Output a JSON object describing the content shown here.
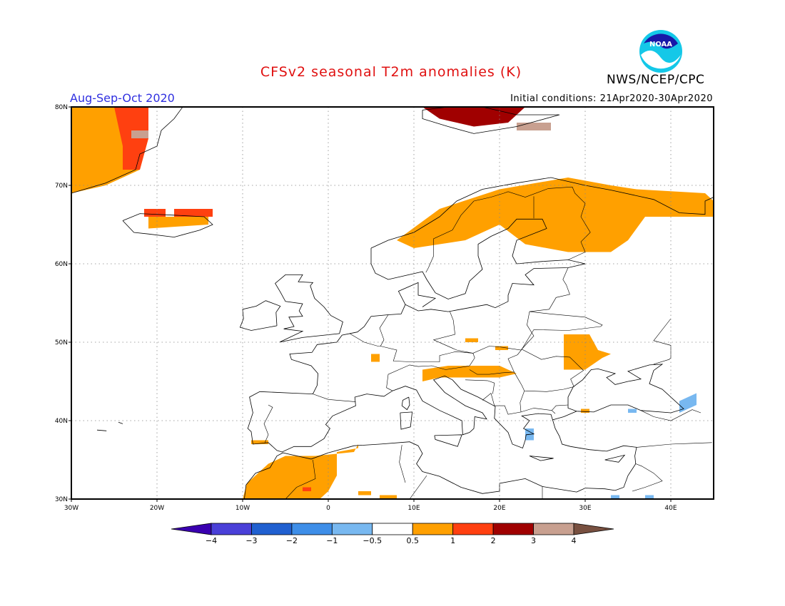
{
  "title": "CFSv2 seasonal T2m anomalies (K)",
  "agency": "NWS/NCEP/CPC",
  "logo_text": "NOAA",
  "period": "Aug-Sep-Oct 2020",
  "initial_conditions": "Initial conditions: 21Apr2020-30Apr2020",
  "map": {
    "lon_range": [
      -30,
      45
    ],
    "lat_range": [
      30,
      80
    ],
    "lon_ticks": [
      {
        "value": -30,
        "label": "30W"
      },
      {
        "value": -20,
        "label": "20W"
      },
      {
        "value": -10,
        "label": "10W"
      },
      {
        "value": 0,
        "label": "0"
      },
      {
        "value": 10,
        "label": "10E"
      },
      {
        "value": 20,
        "label": "20E"
      },
      {
        "value": 30,
        "label": "30E"
      },
      {
        "value": 40,
        "label": "40E"
      }
    ],
    "lat_ticks": [
      {
        "value": 80,
        "label": "80N"
      },
      {
        "value": 70,
        "label": "70N"
      },
      {
        "value": 60,
        "label": "60N"
      },
      {
        "value": 50,
        "label": "50N"
      },
      {
        "value": 40,
        "label": "40N"
      },
      {
        "value": 30,
        "label": "30N"
      }
    ]
  },
  "colorbar": {
    "colors": [
      "#3a00b0",
      "#4a40d8",
      "#2060d0",
      "#3e8ee8",
      "#78b8f0",
      "#ffffff",
      "#ffa000",
      "#ff4010",
      "#a00000",
      "#c8a090",
      "#785040"
    ],
    "labels": [
      "-4",
      "-3",
      "-2",
      "-1",
      "-0.5",
      "0.5",
      "1",
      "2",
      "3",
      "4"
    ]
  },
  "anomaly_regions": [
    {
      "category": "0.5-1",
      "color": "#ffa000",
      "polygons": [
        [
          [
            -30,
            80
          ],
          [
            -22,
            80
          ],
          [
            -21,
            76
          ],
          [
            -22,
            72
          ],
          [
            -26,
            70
          ],
          [
            -30,
            69
          ]
        ],
        [
          [
            -21,
            66
          ],
          [
            -14,
            66
          ],
          [
            -14,
            65
          ],
          [
            -21,
            64.5
          ]
        ],
        [
          [
            8,
            63
          ],
          [
            13,
            67
          ],
          [
            20,
            69.5
          ],
          [
            28,
            71
          ],
          [
            33,
            70
          ],
          [
            36,
            69.5
          ],
          [
            44,
            69
          ],
          [
            45,
            68
          ],
          [
            45,
            66
          ],
          [
            40,
            66
          ],
          [
            37,
            66
          ],
          [
            35,
            63
          ],
          [
            33,
            61.5
          ],
          [
            28,
            61.5
          ],
          [
            23,
            62.5
          ],
          [
            20,
            65
          ],
          [
            16,
            63
          ],
          [
            10,
            62
          ]
        ],
        [
          [
            16,
            50.5
          ],
          [
            17.5,
            50.5
          ],
          [
            17.5,
            50
          ],
          [
            16,
            50
          ]
        ],
        [
          [
            19.5,
            49.5
          ],
          [
            21,
            49.5
          ],
          [
            21,
            49
          ],
          [
            19.5,
            49
          ]
        ],
        [
          [
            11,
            46.5
          ],
          [
            14,
            47
          ],
          [
            20,
            47
          ],
          [
            22,
            46
          ],
          [
            20,
            45.5
          ],
          [
            16,
            45.5
          ],
          [
            13,
            45.5
          ],
          [
            11,
            45
          ]
        ],
        [
          [
            27.5,
            51
          ],
          [
            30.5,
            51
          ],
          [
            31.5,
            49
          ],
          [
            33,
            48.5
          ],
          [
            32,
            48
          ],
          [
            30,
            46.5
          ],
          [
            27.5,
            46.5
          ]
        ],
        [
          [
            5,
            48.5
          ],
          [
            6,
            48.5
          ],
          [
            6,
            47.5
          ],
          [
            5,
            47.5
          ]
        ],
        [
          [
            -9,
            37.5
          ],
          [
            -7,
            37.5
          ],
          [
            -7,
            37
          ],
          [
            -9,
            37
          ]
        ],
        [
          [
            -10,
            30
          ],
          [
            -9.5,
            32
          ],
          [
            -7,
            34.5
          ],
          [
            -5,
            35.5
          ],
          [
            -1.5,
            35.5
          ],
          [
            3,
            36
          ],
          [
            3.5,
            37
          ],
          [
            3.5,
            36.5
          ],
          [
            1,
            36
          ],
          [
            1,
            33
          ],
          [
            0,
            31
          ],
          [
            -1,
            30
          ]
        ],
        [
          [
            3.5,
            31
          ],
          [
            5,
            31
          ],
          [
            5,
            30.5
          ],
          [
            3.5,
            30.5
          ]
        ],
        [
          [
            6,
            30.5
          ],
          [
            8,
            30.5
          ],
          [
            8,
            30
          ],
          [
            6,
            30
          ]
        ],
        [
          [
            29.5,
            41.5
          ],
          [
            30.5,
            41.5
          ],
          [
            30.5,
            41
          ],
          [
            29.5,
            41
          ]
        ]
      ]
    },
    {
      "category": "1-2",
      "color": "#ff4010",
      "polygons": [
        [
          [
            -25,
            80
          ],
          [
            -21,
            80
          ],
          [
            -21,
            76
          ],
          [
            -22,
            72
          ],
          [
            -24,
            72
          ],
          [
            -24,
            75
          ]
        ],
        [
          [
            -21.5,
            67
          ],
          [
            -19,
            67
          ],
          [
            -19,
            66
          ],
          [
            -21.5,
            66
          ]
        ],
        [
          [
            -18,
            67
          ],
          [
            -13.5,
            67
          ],
          [
            -13.5,
            66
          ],
          [
            -18,
            66
          ]
        ],
        [
          [
            -3,
            31.5
          ],
          [
            -2,
            31.5
          ],
          [
            -2,
            31
          ],
          [
            -3,
            31
          ]
        ]
      ]
    },
    {
      "category": "2-3",
      "color": "#a00000",
      "polygons": [
        [
          [
            11,
            80
          ],
          [
            23,
            80
          ],
          [
            21,
            78
          ],
          [
            17,
            77.5
          ],
          [
            13,
            78.5
          ]
        ]
      ]
    },
    {
      "category": "3-4",
      "color": "#c8a090",
      "polygons": [
        [
          [
            -23,
            77
          ],
          [
            -21,
            77
          ],
          [
            -21,
            76
          ],
          [
            -23,
            76
          ]
        ],
        [
          [
            22,
            78
          ],
          [
            26,
            78
          ],
          [
            26,
            77
          ],
          [
            22,
            77
          ]
        ]
      ]
    },
    {
      "category": "-1--0.5",
      "color": "#78b8f0",
      "polygons": [
        [
          [
            23,
            39
          ],
          [
            24,
            39
          ],
          [
            24,
            37.5
          ],
          [
            23,
            37.5
          ]
        ],
        [
          [
            35,
            41.5
          ],
          [
            36,
            41.5
          ],
          [
            36,
            41
          ],
          [
            35,
            41
          ]
        ],
        [
          [
            41,
            42.5
          ],
          [
            43,
            43.5
          ],
          [
            43,
            42
          ],
          [
            41,
            41
          ]
        ],
        [
          [
            33,
            30.5
          ],
          [
            34,
            30.5
          ],
          [
            34,
            30
          ],
          [
            33,
            30
          ]
        ],
        [
          [
            37,
            30.5
          ],
          [
            38,
            30.5
          ],
          [
            38,
            30
          ],
          [
            37,
            30
          ]
        ]
      ]
    }
  ]
}
